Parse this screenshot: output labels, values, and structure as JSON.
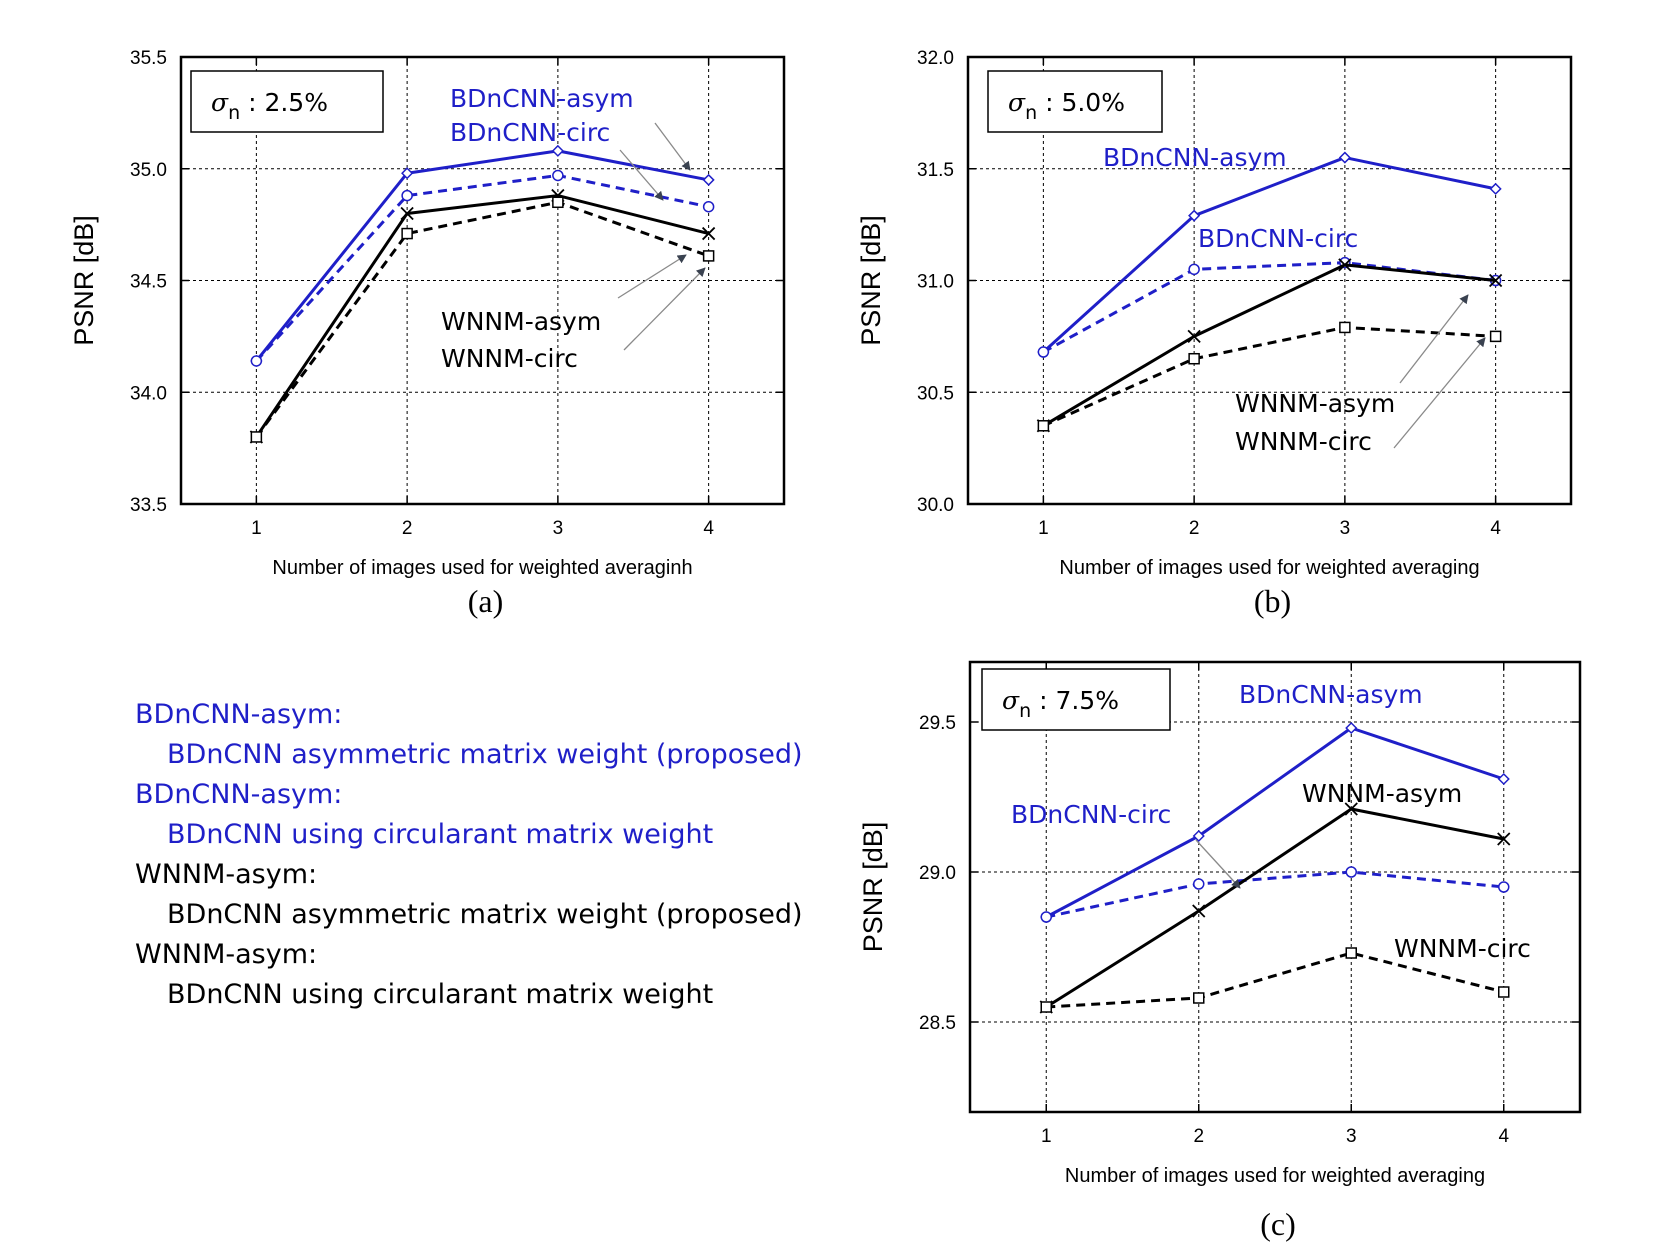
{
  "colors": {
    "blue": "#1f1fc8",
    "black": "#000000",
    "arrow": "#3a4250"
  },
  "legend": {
    "items": [
      {
        "name": "BDnCNN-asym:",
        "desc": "BDnCNN asymmetric matrix weight (proposed)",
        "color": "#1f1fc8"
      },
      {
        "name": "BDnCNN-asym:",
        "desc": "BDnCNN using circularant matrix weight",
        "color": "#1f1fc8"
      },
      {
        "name": "WNNM-asym:",
        "desc": "BDnCNN asymmetric matrix weight (proposed)",
        "color": "#000000"
      },
      {
        "name": "WNNM-asym:",
        "desc": "BDnCNN using circularant matrix weight",
        "color": "#000000"
      }
    ]
  },
  "chart_data": [
    {
      "panel": "a",
      "caption": "(a)",
      "type": "line",
      "sigma_prefix": "σ",
      "sigma_sub": "n",
      "sigma_value": " : 2.5%",
      "xlabel": "Number of images used for weighted averaginh",
      "ylabel": "PSNR [dB]",
      "x": [
        1,
        2,
        3,
        4
      ],
      "xlim": [
        0.5,
        4.5
      ],
      "ylim": [
        33.5,
        35.5
      ],
      "yticks": [
        "33.5",
        "34.0",
        "34.5",
        "35.0",
        "35.5"
      ],
      "xticks": [
        "1",
        "2",
        "3",
        "4"
      ],
      "grid": true,
      "series": [
        {
          "name": "BDnCNN-asym",
          "values": [
            34.14,
            34.98,
            35.08,
            34.95
          ],
          "color": "#1f1fc8",
          "dash": "solid",
          "marker": "diamond"
        },
        {
          "name": "BDnCNN-circ",
          "values": [
            34.14,
            34.88,
            34.97,
            34.83
          ],
          "color": "#1f1fc8",
          "dash": "dashed",
          "marker": "circle"
        },
        {
          "name": "WNNM-asym",
          "values": [
            33.8,
            34.8,
            34.88,
            34.71
          ],
          "color": "#000000",
          "dash": "solid",
          "marker": "x"
        },
        {
          "name": "WNNM-circ",
          "values": [
            33.8,
            34.71,
            34.85,
            34.61
          ],
          "color": "#000000",
          "dash": "dashed",
          "marker": "square"
        }
      ],
      "annotations": [
        "BDnCNN-asym",
        "BDnCNN-circ",
        "WNNM-asym",
        "WNNM-circ"
      ]
    },
    {
      "panel": "b",
      "caption": "(b)",
      "type": "line",
      "sigma_prefix": "σ",
      "sigma_sub": "n",
      "sigma_value": " : 5.0%",
      "xlabel": "Number of images used for weighted averaging",
      "ylabel": "PSNR [dB]",
      "x": [
        1,
        2,
        3,
        4
      ],
      "xlim": [
        0.5,
        4.5
      ],
      "ylim": [
        30.0,
        32.0
      ],
      "yticks": [
        "30.0",
        "30.5",
        "31.0",
        "31.5",
        "32.0"
      ],
      "xticks": [
        "1",
        "2",
        "3",
        "4"
      ],
      "grid": true,
      "series": [
        {
          "name": "BDnCNN-asym",
          "values": [
            30.68,
            31.29,
            31.55,
            31.41
          ],
          "color": "#1f1fc8",
          "dash": "solid",
          "marker": "diamond"
        },
        {
          "name": "BDnCNN-circ",
          "values": [
            30.68,
            31.05,
            31.08,
            31.0
          ],
          "color": "#1f1fc8",
          "dash": "dashed",
          "marker": "circle"
        },
        {
          "name": "WNNM-asym",
          "values": [
            30.35,
            30.75,
            31.07,
            31.0
          ],
          "color": "#000000",
          "dash": "solid",
          "marker": "x"
        },
        {
          "name": "WNNM-circ",
          "values": [
            30.35,
            30.65,
            30.79,
            30.75
          ],
          "color": "#000000",
          "dash": "dashed",
          "marker": "square"
        }
      ],
      "annotations": [
        "BDnCNN-asym",
        "BDnCNN-circ",
        "WNNM-asym",
        "WNNM-circ"
      ]
    },
    {
      "panel": "c",
      "caption": "(c)",
      "type": "line",
      "sigma_prefix": "σ",
      "sigma_sub": "n",
      "sigma_value": " : 7.5%",
      "xlabel": "Number of images used for weighted averaging",
      "ylabel": "PSNR [dB]",
      "x": [
        1,
        2,
        3,
        4
      ],
      "xlim": [
        0.5,
        4.5
      ],
      "ylim": [
        28.2,
        29.7
      ],
      "yticks": [
        "28.5",
        "29.0",
        "29.5"
      ],
      "xticks": [
        "1",
        "2",
        "3",
        "4"
      ],
      "grid": true,
      "series": [
        {
          "name": "BDnCNN-asym",
          "values": [
            28.85,
            29.12,
            29.48,
            29.31
          ],
          "color": "#1f1fc8",
          "dash": "solid",
          "marker": "diamond"
        },
        {
          "name": "BDnCNN-circ",
          "values": [
            28.85,
            28.96,
            29.0,
            28.95
          ],
          "color": "#1f1fc8",
          "dash": "dashed",
          "marker": "circle"
        },
        {
          "name": "WNNM-asym",
          "values": [
            28.55,
            28.87,
            29.21,
            29.11
          ],
          "color": "#000000",
          "dash": "solid",
          "marker": "x"
        },
        {
          "name": "WNNM-circ",
          "values": [
            28.55,
            28.58,
            28.73,
            28.6
          ],
          "color": "#000000",
          "dash": "dashed",
          "marker": "square"
        }
      ],
      "annotations": [
        "BDnCNN-asym",
        "BDnCNN-circ",
        "WNNM-asym",
        "WNNM-circ"
      ]
    }
  ]
}
